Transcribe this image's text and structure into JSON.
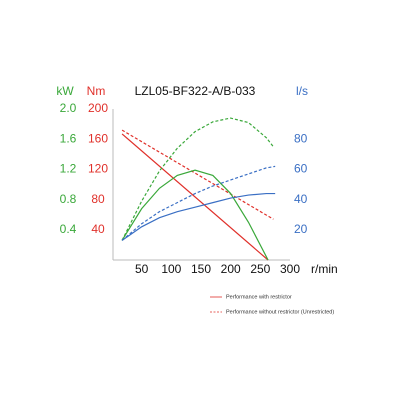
{
  "chart_data": {
    "type": "line",
    "title": "LZL05-BF322-A/B-033",
    "xlabel": "r/min",
    "ylabel": "Nm",
    "y2label": "l/s",
    "y3label": "kW",
    "xlim": [
      0,
      300
    ],
    "xticks": [
      50,
      100,
      150,
      200,
      250,
      300
    ],
    "ylim": [
      0,
      200
    ],
    "yticks": [
      40,
      80,
      120,
      160,
      200
    ],
    "y2lim": [
      0,
      100
    ],
    "y2ticks": [
      20,
      40,
      60,
      80
    ],
    "y3lim": [
      0,
      2.0
    ],
    "y3ticks": [
      0.4,
      0.8,
      1.2,
      1.6,
      {
        "value": 2.0,
        "label": "2.0"
      }
    ],
    "axis_colors": {
      "y": "#e0302a",
      "y2": "#3a6fc4",
      "y3": "#3aa83a"
    },
    "series": [
      {
        "color": "#e0302a",
        "dash": false,
        "axis": "y",
        "x": [
          17,
          263
        ],
        "values": [
          167,
          0
        ]
      },
      {
        "color": "#e0302a",
        "dash": true,
        "axis": "y",
        "x": [
          17,
          272
        ],
        "values": [
          172,
          54
        ]
      },
      {
        "color": "#3aa83a",
        "dash": false,
        "axis": "y3",
        "x": [
          17,
          50,
          80,
          110,
          140,
          170,
          200,
          230,
          263
        ],
        "values": [
          0.26,
          0.68,
          0.95,
          1.12,
          1.19,
          1.12,
          0.88,
          0.5,
          0
        ]
      },
      {
        "color": "#3aa83a",
        "dash": true,
        "axis": "y3",
        "x": [
          17,
          50,
          80,
          110,
          140,
          170,
          200,
          230,
          260,
          272
        ],
        "values": [
          0.26,
          0.78,
          1.18,
          1.48,
          1.7,
          1.83,
          1.88,
          1.82,
          1.62,
          1.5
        ]
      },
      {
        "color": "#3a6fc4",
        "dash": false,
        "axis": "y2",
        "x": [
          17,
          50,
          80,
          110,
          140,
          170,
          200,
          230,
          260,
          275
        ],
        "values": [
          13,
          22,
          28,
          32,
          35,
          38,
          41,
          43,
          44,
          44
        ]
      },
      {
        "color": "#3a6fc4",
        "dash": true,
        "axis": "y2",
        "x": [
          17,
          50,
          80,
          110,
          140,
          170,
          200,
          230,
          260,
          275
        ],
        "values": [
          13,
          24,
          32,
          38,
          44,
          49,
          53,
          57,
          61,
          62
        ]
      }
    ],
    "legend": [
      {
        "label": "Performance with restrictor",
        "color": "#e0302a",
        "dash": false
      },
      {
        "label": "Performance without restrictor (Unrestricted)",
        "color": "#e0302a",
        "dash": true
      }
    ]
  }
}
